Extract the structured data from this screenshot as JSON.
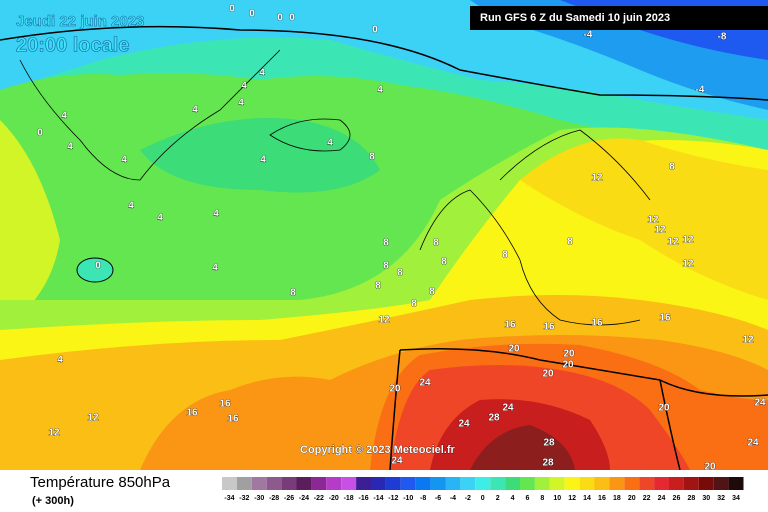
{
  "header": {
    "date": "Jeudi 22 juin 2023",
    "time": "20:00 locale",
    "run": "Run GFS 6 Z du Samedi 10 juin 2023"
  },
  "copyright": "Copyright © 2023 Meteociel.fr",
  "legend": {
    "title": "Température 850hPa",
    "subtitle": "(+ 300h)",
    "colorbar": [
      {
        "value": -34,
        "color": "#c8c8c8"
      },
      {
        "value": -32,
        "color": "#a0a0a0"
      },
      {
        "value": -30,
        "color": "#a078a0"
      },
      {
        "value": -28,
        "color": "#8c5a8c"
      },
      {
        "value": -26,
        "color": "#783c78"
      },
      {
        "value": -24,
        "color": "#5a1e5a"
      },
      {
        "value": -22,
        "color": "#8c2896"
      },
      {
        "value": -20,
        "color": "#b43cc8"
      },
      {
        "value": -18,
        "color": "#c850e6"
      },
      {
        "value": -16,
        "color": "#3c1e96"
      },
      {
        "value": -14,
        "color": "#2828b4"
      },
      {
        "value": -12,
        "color": "#1e3cd2"
      },
      {
        "value": -10,
        "color": "#1e5af0"
      },
      {
        "value": -8,
        "color": "#0a78f0"
      },
      {
        "value": -6,
        "color": "#1496f0"
      },
      {
        "value": -4,
        "color": "#28b4f5"
      },
      {
        "value": -2,
        "color": "#3cd2f5"
      },
      {
        "value": 0,
        "color": "#3ceee6"
      },
      {
        "value": 2,
        "color": "#3ce6b4"
      },
      {
        "value": 4,
        "color": "#3cdc78"
      },
      {
        "value": 6,
        "color": "#64e650"
      },
      {
        "value": 8,
        "color": "#a0f03c"
      },
      {
        "value": 10,
        "color": "#d2f528"
      },
      {
        "value": 12,
        "color": "#faf514"
      },
      {
        "value": 14,
        "color": "#fadc14"
      },
      {
        "value": 16,
        "color": "#fabe14"
      },
      {
        "value": 18,
        "color": "#fa9614"
      },
      {
        "value": 20,
        "color": "#fa6e14"
      },
      {
        "value": 22,
        "color": "#f04628"
      },
      {
        "value": 24,
        "color": "#e62832"
      },
      {
        "value": 26,
        "color": "#c81e1e"
      },
      {
        "value": 28,
        "color": "#a01414"
      },
      {
        "value": 30,
        "color": "#780a0a"
      },
      {
        "value": 32,
        "color": "#501414"
      },
      {
        "value": 34,
        "color": "#1e0a0a"
      }
    ]
  },
  "contour_labels": [
    0,
    0,
    0,
    0,
    0,
    -4,
    -8,
    -4,
    4,
    4,
    4,
    4,
    4,
    0,
    4,
    4,
    4,
    4,
    8,
    4,
    4,
    4,
    4,
    0,
    4,
    8,
    8,
    8,
    8,
    8,
    8,
    8,
    8,
    12,
    8,
    8,
    8,
    12,
    8,
    12,
    12,
    12,
    12,
    12,
    16,
    16,
    16,
    16,
    12,
    20,
    20,
    20,
    20,
    20,
    24,
    24,
    28,
    24,
    28,
    28,
    24,
    20,
    24,
    24,
    20,
    4,
    12,
    12,
    16,
    16,
    16
  ]
}
